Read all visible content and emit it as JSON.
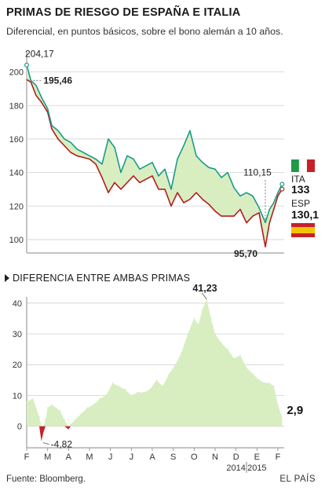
{
  "title": "PRIMAS DE RIESGO DE ESPAÑA E ITALIA",
  "subtitle": "Diferencial, en puntos básicos, sobre el bono alemán a 10 años.",
  "colors": {
    "italy": "#1a9a8a",
    "spain": "#b21e1e",
    "fill": "#d8eec0",
    "grid": "#cfcfcf",
    "axis": "#888888"
  },
  "chart_data": [
    {
      "type": "line",
      "x_unit": "month",
      "x_range": [
        0,
        12.3
      ],
      "ylim": [
        92,
        212
      ],
      "yticks": [
        100,
        120,
        140,
        160,
        180,
        200
      ],
      "series": [
        {
          "name": "ITA",
          "color": "#1a9a8a",
          "x": [
            0,
            0.2,
            0.45,
            0.7,
            1.0,
            1.2,
            1.5,
            1.8,
            2.1,
            2.4,
            2.7,
            3.0,
            3.3,
            3.6,
            3.9,
            4.2,
            4.5,
            4.8,
            5.1,
            5.4,
            5.7,
            6.0,
            6.3,
            6.6,
            6.9,
            7.2,
            7.5,
            7.8,
            8.1,
            8.4,
            8.7,
            9.0,
            9.3,
            9.6,
            9.9,
            10.2,
            10.5,
            10.8,
            11.1,
            11.4,
            11.6,
            11.8,
            12.0,
            12.2
          ],
          "values": [
            204.17,
            195,
            192,
            185,
            178,
            168,
            165,
            160,
            158,
            154,
            152,
            150,
            148,
            145,
            160,
            155,
            140,
            150,
            148,
            142,
            144,
            146,
            138,
            142,
            130,
            148,
            156,
            165,
            150,
            146,
            143,
            142,
            137,
            140,
            131,
            126,
            128,
            126,
            119,
            110.15,
            118,
            122,
            128,
            133
          ]
        },
        {
          "name": "ESP",
          "color": "#b21e1e",
          "x": [
            0,
            0.2,
            0.45,
            0.7,
            1.0,
            1.2,
            1.5,
            1.8,
            2.1,
            2.4,
            2.7,
            3.0,
            3.3,
            3.6,
            3.9,
            4.2,
            4.5,
            4.8,
            5.1,
            5.4,
            5.7,
            6.0,
            6.3,
            6.6,
            6.9,
            7.2,
            7.5,
            7.8,
            8.1,
            8.4,
            8.7,
            9.0,
            9.3,
            9.6,
            9.9,
            10.2,
            10.5,
            10.8,
            11.1,
            11.4,
            11.6,
            11.8,
            12.0,
            12.2
          ],
          "values": [
            195.46,
            194,
            186,
            182,
            176,
            166,
            160,
            156,
            152,
            150,
            149,
            148,
            145,
            137,
            128,
            134,
            130,
            134,
            138,
            134,
            136,
            138,
            130,
            130,
            120,
            128,
            122,
            124,
            128,
            124,
            121,
            117,
            114,
            114,
            114,
            118,
            110,
            114,
            116,
            95.7,
            110,
            118,
            126,
            130.1
          ]
        }
      ],
      "annotations": [
        {
          "label": "204,17",
          "x": 0.0,
          "y": 204.17
        },
        {
          "label": "195,46",
          "x": 0.2,
          "y": 195.46
        },
        {
          "label": "110,15",
          "x": 11.4,
          "y": 110.15
        },
        {
          "label": "95,70",
          "x": 11.4,
          "y": 95.7
        }
      ],
      "legend": [
        {
          "country": "ITA",
          "value": "133"
        },
        {
          "country": "ESP",
          "value": "130,1"
        }
      ]
    },
    {
      "type": "area",
      "title": "DIFERENCIA ENTRE AMBAS PRIMAS",
      "x_range": [
        0,
        12.3
      ],
      "ylim": [
        -7,
        42
      ],
      "yticks": [
        0,
        10,
        20,
        30,
        40
      ],
      "xtick_labels": [
        "F",
        "M",
        "A",
        "M",
        "J",
        "J",
        "A",
        "S",
        "O",
        "N",
        "D",
        "E",
        "F"
      ],
      "year_labels": [
        {
          "label": "2014",
          "month_index": 10
        },
        {
          "label": "2015",
          "month_index": 11
        }
      ],
      "x": [
        0,
        0.3,
        0.6,
        0.7,
        0.8,
        0.9,
        1.0,
        1.2,
        1.4,
        1.6,
        1.8,
        2.0,
        2.1,
        2.3,
        2.6,
        2.9,
        3.2,
        3.5,
        3.8,
        4.1,
        4.4,
        4.7,
        5.0,
        5.3,
        5.6,
        5.9,
        6.2,
        6.5,
        6.8,
        7.1,
        7.4,
        7.7,
        8.0,
        8.2,
        8.4,
        8.6,
        8.8,
        9.0,
        9.3,
        9.6,
        9.9,
        10.2,
        10.5,
        10.8,
        11.1,
        11.4,
        11.6,
        11.8,
        12.0,
        12.2
      ],
      "values": [
        8,
        9,
        3,
        -4.82,
        -2,
        2,
        6,
        7,
        6,
        5,
        2,
        -1,
        0.5,
        2,
        4,
        6,
        7,
        9,
        10,
        14,
        13,
        12,
        10,
        11,
        11,
        12,
        15,
        13,
        17,
        20,
        24,
        30,
        35,
        33,
        38,
        41.23,
        35,
        30,
        27,
        25,
        22,
        23,
        19,
        17,
        15,
        14,
        14,
        13,
        7,
        2.9
      ],
      "annotations": [
        {
          "label": "41,23",
          "x": 8.6,
          "y": 41.23
        },
        {
          "label": "-4,82",
          "x": 0.7,
          "y": -4.82
        },
        {
          "label": "2,9",
          "x": 12.2,
          "y": 2.9
        }
      ]
    }
  ],
  "footer": {
    "source": "Fuente: Bloomberg.",
    "publisher": "EL PAÍS"
  }
}
